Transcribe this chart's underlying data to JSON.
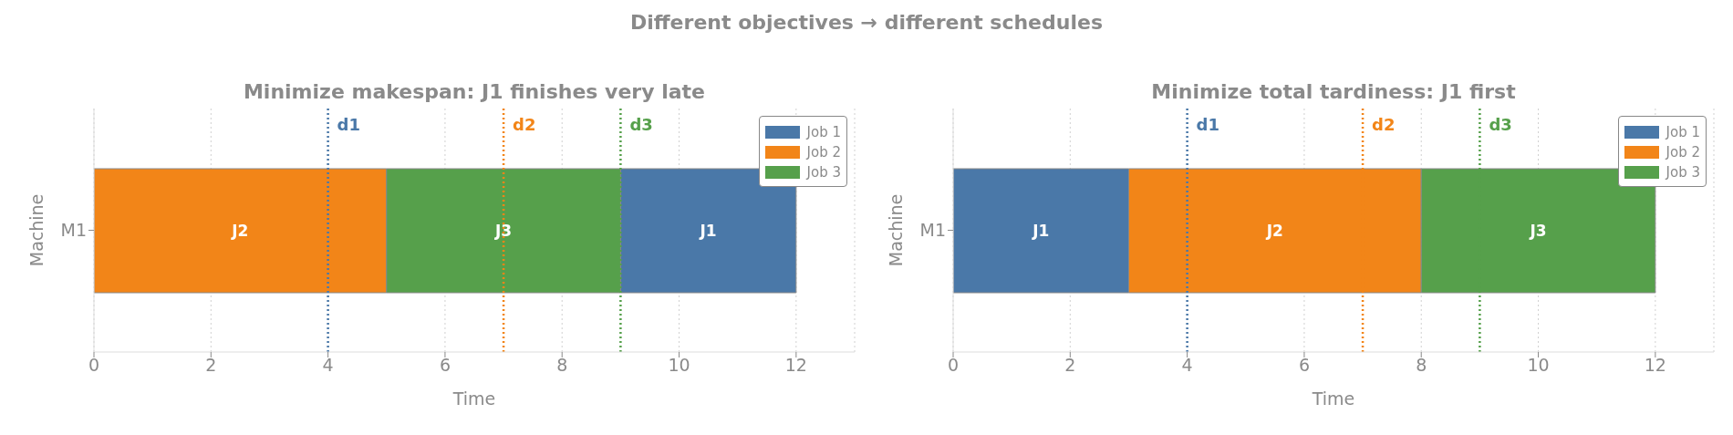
{
  "chart_data": [
    {
      "type": "bar",
      "orientation": "horizontal",
      "title": "Minimize makespan: J1 finishes very late",
      "annotations": [
        "Different objectives → different schedules"
      ],
      "xlabel": "Time",
      "ylabel": "Machine",
      "categories": [
        "M1"
      ],
      "series": [
        {
          "name": "Job 1",
          "color": "#4a78a8",
          "base": [
            9
          ],
          "values": [
            3
          ],
          "value_labels": [
            "J1"
          ]
        },
        {
          "name": "Job 2",
          "color": "#f28518",
          "base": [
            0
          ],
          "values": [
            5
          ],
          "value_labels": [
            "J2"
          ]
        },
        {
          "name": "Job 3",
          "color": "#56a04b",
          "base": [
            5
          ],
          "values": [
            4
          ],
          "value_labels": [
            "J3"
          ]
        }
      ],
      "xlim": [
        0,
        13
      ],
      "xticks": [
        0,
        2,
        4,
        6,
        8,
        10,
        12
      ],
      "grid": "x",
      "legend": "top right",
      "ref_lines": [
        {
          "axis": "x",
          "value": 4,
          "label": "d1",
          "color": "#4a78a8",
          "line_style": "dotted"
        },
        {
          "axis": "x",
          "value": 7,
          "label": "d2",
          "color": "#f28518",
          "line_style": "dotted"
        },
        {
          "axis": "x",
          "value": 9,
          "label": "d3",
          "color": "#56a04b",
          "line_style": "dotted"
        }
      ]
    },
    {
      "type": "bar",
      "orientation": "horizontal",
      "title": "Minimize total tardiness: J1 first",
      "xlabel": "Time",
      "ylabel": "Machine",
      "categories": [
        "M1"
      ],
      "series": [
        {
          "name": "Job 1",
          "color": "#4a78a8",
          "base": [
            0
          ],
          "values": [
            3
          ],
          "value_labels": [
            "J1"
          ]
        },
        {
          "name": "Job 2",
          "color": "#f28518",
          "base": [
            3
          ],
          "values": [
            5
          ],
          "value_labels": [
            "J2"
          ]
        },
        {
          "name": "Job 3",
          "color": "#56a04b",
          "base": [
            8
          ],
          "values": [
            4
          ],
          "value_labels": [
            "J3"
          ]
        }
      ],
      "xlim": [
        0,
        13
      ],
      "xticks": [
        0,
        2,
        4,
        6,
        8,
        10,
        12
      ],
      "grid": "x",
      "legend": "top right",
      "ref_lines": [
        {
          "axis": "x",
          "value": 4,
          "label": "d1",
          "color": "#4a78a8",
          "line_style": "dotted"
        },
        {
          "axis": "x",
          "value": 7,
          "label": "d2",
          "color": "#f28518",
          "line_style": "dotted"
        },
        {
          "axis": "x",
          "value": 9,
          "label": "d3",
          "color": "#56a04b",
          "line_style": "dotted"
        }
      ]
    }
  ]
}
